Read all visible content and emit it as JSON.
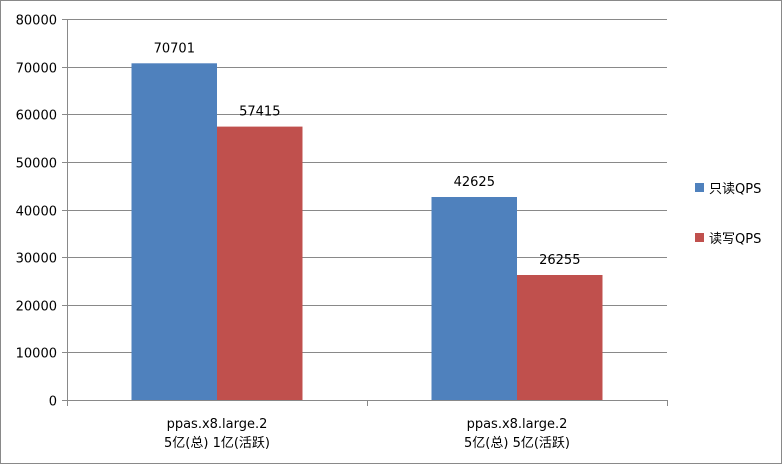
{
  "chart_data": {
    "type": "bar",
    "title": "",
    "xlabel": "",
    "ylabel": "",
    "ylim": [
      0,
      80000
    ],
    "yticks": [
      0,
      10000,
      20000,
      30000,
      40000,
      50000,
      60000,
      70000,
      80000
    ],
    "grid": true,
    "legend_position": "right",
    "categories": [
      [
        "ppas.x8.large.2",
        "5亿(总) 1亿(活跃)"
      ],
      [
        "ppas.x8.large.2",
        "5亿(总) 5亿(活跃)"
      ]
    ],
    "series": [
      {
        "name": "只读QPS",
        "color": "#4F81BD",
        "values": [
          70701,
          42625
        ]
      },
      {
        "name": "读写QPS",
        "color": "#C0504D",
        "values": [
          57415,
          26255
        ]
      }
    ]
  }
}
